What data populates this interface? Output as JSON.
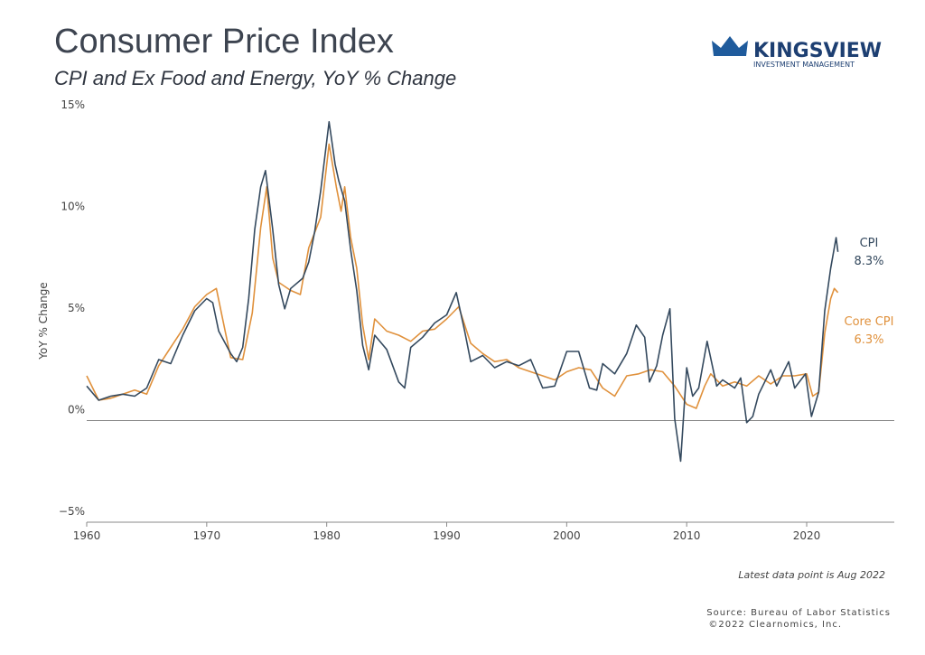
{
  "chart_data": {
    "type": "line",
    "title": "Consumer Price Index",
    "subtitle": "CPI and Ex Food and Energy, YoY % Change",
    "ylabel": "YoY % Change",
    "note": "Latest data point is Aug 2022",
    "source": "Source: Bureau of Labor Statistics",
    "copyright": "©2022 Clearnomics, Inc.",
    "logo": {
      "name": "KINGSVIEW",
      "tagline": "INVESTMENT MANAGEMENT"
    },
    "xlim": [
      1960,
      2027.3
    ],
    "xticks": [
      1960,
      1970,
      1980,
      1990,
      2000,
      2010,
      2020
    ],
    "ylim": [
      -5,
      15
    ],
    "yticks": [
      {
        "value": -5,
        "label": "−5%"
      },
      {
        "value": 0,
        "label": "0%"
      },
      {
        "value": 5,
        "label": "5%"
      },
      {
        "value": 10,
        "label": "10%"
      },
      {
        "value": 15,
        "label": "15%"
      }
    ],
    "series": [
      {
        "name": "CPI",
        "color": "#34495e",
        "end_label": "8.3%",
        "x": [
          1960,
          1961,
          1962,
          1963,
          1964,
          1965,
          1966,
          1967,
          1968,
          1969,
          1970,
          1970.5,
          1971,
          1972,
          1972.5,
          1973,
          1973.5,
          1974,
          1974.5,
          1974.9,
          1975.5,
          1976,
          1976.5,
          1977,
          1978,
          1978.5,
          1979,
          1979.5,
          1980.2,
          1980.7,
          1981,
          1981.5,
          1982,
          1982.5,
          1983,
          1983.5,
          1984,
          1985,
          1986,
          1986.5,
          1987,
          1988,
          1989,
          1990,
          1990.8,
          1991.5,
          1992,
          1993,
          1994,
          1995,
          1996,
          1997,
          1998,
          1999,
          2000,
          2001,
          2001.9,
          2002.5,
          2003,
          2004,
          2005,
          2005.8,
          2006.5,
          2006.9,
          2007.5,
          2008,
          2008.6,
          2009,
          2009.5,
          2010,
          2010.5,
          2011,
          2011.7,
          2012.5,
          2013,
          2014,
          2014.5,
          2015,
          2015.5,
          2016,
          2017,
          2017.5,
          2018.5,
          2019,
          2019.9,
          2020.4,
          2021,
          2021.5,
          2022,
          2022.45,
          2022.6
        ],
        "values": [
          1.7,
          1.0,
          1.2,
          1.3,
          1.2,
          1.6,
          3.0,
          2.8,
          4.2,
          5.4,
          6.0,
          5.8,
          4.4,
          3.3,
          2.9,
          3.6,
          6.0,
          9.4,
          11.5,
          12.3,
          9.4,
          6.7,
          5.5,
          6.5,
          7.0,
          7.8,
          9.3,
          11.3,
          14.7,
          12.6,
          11.8,
          10.8,
          8.4,
          6.4,
          3.7,
          2.5,
          4.2,
          3.5,
          1.9,
          1.6,
          3.6,
          4.1,
          4.8,
          5.2,
          6.3,
          4.4,
          2.9,
          3.2,
          2.6,
          2.9,
          2.7,
          3.0,
          1.6,
          1.7,
          3.4,
          3.4,
          1.6,
          1.5,
          2.8,
          2.3,
          3.3,
          4.7,
          4.1,
          1.9,
          2.7,
          4.2,
          5.5,
          0.1,
          -2.0,
          2.6,
          1.2,
          1.6,
          3.9,
          1.7,
          2.0,
          1.6,
          2.1,
          -0.1,
          0.2,
          1.3,
          2.5,
          1.7,
          2.9,
          1.6,
          2.3,
          0.2,
          1.4,
          5.4,
          7.5,
          9.0,
          8.3
        ]
      },
      {
        "name": "Core CPI",
        "color": "#e0913c",
        "end_label": "6.3%",
        "x": [
          1960,
          1961,
          1962,
          1963,
          1964,
          1965,
          1966,
          1967,
          1968,
          1969,
          1970,
          1970.8,
          1971.5,
          1972,
          1973,
          1973.8,
          1974.5,
          1975,
          1975.5,
          1976,
          1977,
          1977.8,
          1978.5,
          1979.5,
          1980.2,
          1980.8,
          1981.2,
          1981.5,
          1982,
          1982.5,
          1983,
          1983.5,
          1984,
          1985,
          1986,
          1987,
          1988,
          1989,
          1990,
          1991,
          1992,
          1993,
          1994,
          1995,
          1996,
          1997,
          1998,
          1999,
          2000,
          2001,
          2002,
          2003,
          2004,
          2005,
          2006,
          2007,
          2008,
          2009,
          2010,
          2010.8,
          2011.5,
          2012,
          2013,
          2014,
          2015,
          2016,
          2017,
          2018,
          2019,
          2020,
          2020.5,
          2021,
          2021.5,
          2022,
          2022.3,
          2022.6
        ],
        "values": [
          2.2,
          1.0,
          1.1,
          1.3,
          1.5,
          1.3,
          2.7,
          3.6,
          4.5,
          5.6,
          6.2,
          6.5,
          4.5,
          3.1,
          3.0,
          5.3,
          9.5,
          11.5,
          8.0,
          6.8,
          6.4,
          6.2,
          8.5,
          10.0,
          13.6,
          11.5,
          10.3,
          11.5,
          9.0,
          7.5,
          4.7,
          3.0,
          5.0,
          4.4,
          4.2,
          3.9,
          4.4,
          4.5,
          5.0,
          5.6,
          3.8,
          3.3,
          2.9,
          3.0,
          2.6,
          2.4,
          2.2,
          2.0,
          2.4,
          2.6,
          2.5,
          1.6,
          1.2,
          2.2,
          2.3,
          2.5,
          2.4,
          1.7,
          0.8,
          0.6,
          1.7,
          2.3,
          1.7,
          1.9,
          1.7,
          2.2,
          1.8,
          2.2,
          2.2,
          2.3,
          1.2,
          1.4,
          4.3,
          6.0,
          6.5,
          6.3
        ]
      }
    ]
  }
}
